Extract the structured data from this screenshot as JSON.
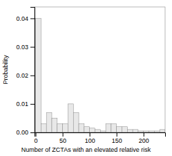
{
  "chart_data": {
    "type": "histogram",
    "xlabel": "Number of ZCTAs with an elevated relative risk",
    "ylabel": "Probability",
    "bins": [
      0,
      10,
      20,
      30,
      40,
      50,
      60,
      70,
      80,
      90,
      100,
      110,
      120,
      130,
      140,
      150,
      160,
      170,
      180,
      190,
      200,
      210,
      220,
      230,
      240
    ],
    "values": [
      0.04,
      0.003,
      0.007,
      0.005,
      0.003,
      0.003,
      0.01,
      0.007,
      0.003,
      0.002,
      0.0015,
      0.001,
      0.0005,
      0.003,
      0.003,
      0.002,
      0.002,
      0.001,
      0.001,
      0.0005,
      0.0005,
      0.0005,
      0.0005,
      0.001
    ],
    "color": "#e8e8e8",
    "xlim": [
      -2,
      240
    ],
    "ylim": [
      0,
      0.044
    ],
    "xticks": [
      0,
      50,
      100,
      150,
      200
    ],
    "yticks": [
      {
        "value": 0,
        "label": "0.00"
      },
      0.01,
      0.02,
      0.03,
      0.04
    ]
  }
}
